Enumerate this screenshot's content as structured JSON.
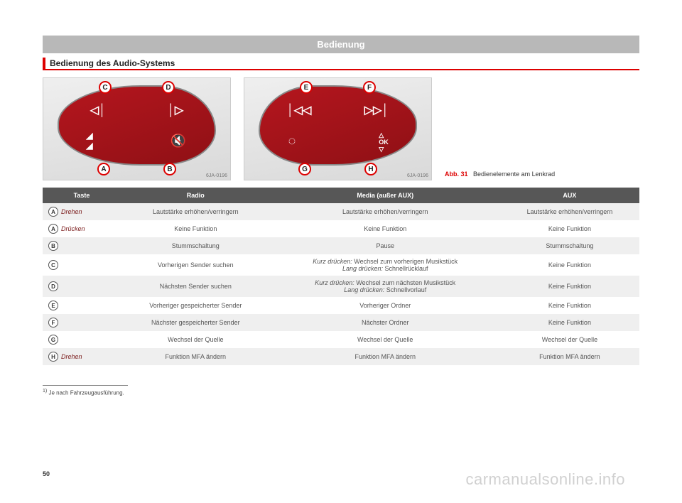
{
  "header": {
    "title": "Bedienung"
  },
  "section": {
    "title": "Bedienung des Audio-Systems"
  },
  "figures": {
    "left": {
      "code": "6JA-0196",
      "callouts": {
        "top_left": "C",
        "top_right": "D",
        "bottom_left": "A",
        "bottom_right": "B"
      }
    },
    "right": {
      "code": "6JA-0196",
      "callouts": {
        "top_left": "E",
        "top_right": "F",
        "bottom_left": "G",
        "bottom_right": "H"
      }
    },
    "caption_label": "Abb. 31",
    "caption_text": "Bedienelemente am Lenkrad"
  },
  "table": {
    "columns": [
      "Taste",
      "Radio",
      "Media (außer AUX)",
      "AUX"
    ],
    "col_widths": [
      "110px",
      "auto",
      "auto",
      "auto"
    ],
    "header_bg": "#575757",
    "header_fg": "#ffffff",
    "row_odd_bg": "#efefef",
    "row_even_bg": "#ffffff",
    "rows": [
      {
        "key": "A",
        "suffix": "Drehen",
        "radio": "Lautstärke erhöhen/verringern",
        "media": "Lautstärke erhöhen/verringern",
        "aux": "Lautstärke erhöhen/verringern"
      },
      {
        "key": "A",
        "suffix": "Drücken",
        "radio": "Keine Funktion",
        "media": "Keine Funktion",
        "aux": "Keine Funktion"
      },
      {
        "key": "B",
        "suffix": "",
        "radio": "Stummschaltung",
        "media": "Pause",
        "aux": "Stummschaltung"
      },
      {
        "key": "C",
        "suffix": "",
        "radio": "Vorherigen Sender suchen",
        "media_rich": [
          {
            "em": "Kurz drücken:",
            "text": " Wechsel zum vorherigen Musikstück"
          },
          {
            "em": "Lang drücken:",
            "text": " Schnellrücklauf"
          }
        ],
        "aux": "Keine Funktion"
      },
      {
        "key": "D",
        "suffix": "",
        "radio": "Nächsten Sender suchen",
        "media_rich": [
          {
            "em": "Kurz drücken:",
            "text": " Wechsel zum nächsten Musikstück"
          },
          {
            "em": "Lang drücken:",
            "text": " Schnellvorlauf"
          }
        ],
        "aux": "Keine Funktion"
      },
      {
        "key": "E",
        "suffix": "",
        "radio": "Vorheriger gespeicherter Sender",
        "media": "Vorheriger Ordner",
        "aux": "Keine Funktion"
      },
      {
        "key": "F",
        "suffix": "",
        "radio": "Nächster gespeicherter Sender",
        "media": "Nächster Ordner",
        "aux": "Keine Funktion"
      },
      {
        "key": "G",
        "suffix": "",
        "radio": "Wechsel der Quelle",
        "media": "Wechsel der Quelle",
        "aux": "Wechsel der Quelle"
      },
      {
        "key": "H",
        "suffix": "Drehen",
        "radio": "Funktion MFA ändern",
        "media": "Funktion MFA ändern",
        "aux": "Funktion MFA ändern"
      }
    ]
  },
  "footnote": {
    "marker": "1)",
    "text": "Je nach Fahrzeugausführung."
  },
  "page_number": "50",
  "watermark": "carmanualsonline.info",
  "colors": {
    "accent_red": "#d00",
    "header_grey": "#b8b8b8",
    "panel_red_start": "#b5161e",
    "panel_red_end": "#8f1015"
  }
}
